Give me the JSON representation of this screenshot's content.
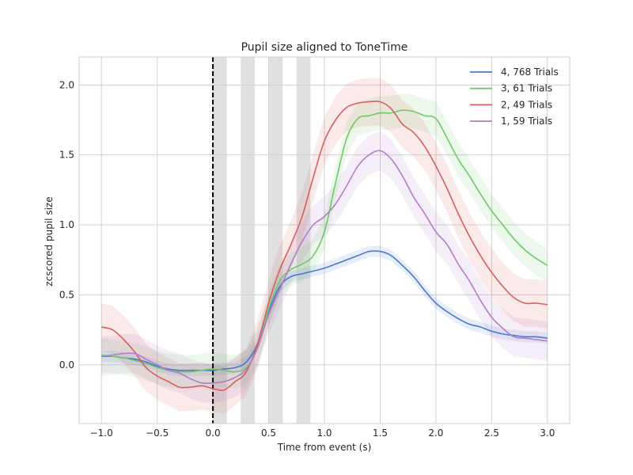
{
  "chart_data": {
    "type": "line",
    "title": "Pupil size aligned to ToneTime",
    "xlabel": "Time from event (s)",
    "ylabel": "zcscored pupil size",
    "xlim": [
      -1.2,
      3.2
    ],
    "ylim": [
      -0.42,
      2.2
    ],
    "xticks": [
      -1.0,
      -0.5,
      0.0,
      0.5,
      1.0,
      1.5,
      2.0,
      2.5,
      3.0
    ],
    "xtick_labels": [
      "−1.0",
      "−0.5",
      "0.0",
      "0.5",
      "1.0",
      "1.5",
      "2.0",
      "2.5",
      "3.0"
    ],
    "yticks": [
      0.0,
      0.5,
      1.0,
      1.5,
      2.0
    ],
    "ytick_labels": [
      "0.0",
      "0.5",
      "1.0",
      "1.5",
      "2.0"
    ],
    "grid": true,
    "legend_position": "top-right",
    "event_line_x": 0.0,
    "shaded_intervals": [
      [
        0.0,
        0.125
      ],
      [
        0.25,
        0.375
      ],
      [
        0.5,
        0.625
      ],
      [
        0.75,
        0.875
      ]
    ],
    "x": [
      -1.0,
      -0.9,
      -0.8,
      -0.7,
      -0.6,
      -0.5,
      -0.4,
      -0.3,
      -0.2,
      -0.1,
      0.0,
      0.1,
      0.2,
      0.3,
      0.4,
      0.5,
      0.6,
      0.7,
      0.8,
      0.9,
      1.0,
      1.1,
      1.2,
      1.3,
      1.4,
      1.5,
      1.6,
      1.7,
      1.8,
      1.9,
      2.0,
      2.1,
      2.2,
      2.3,
      2.4,
      2.5,
      2.6,
      2.7,
      2.8,
      2.9,
      3.0
    ],
    "series": [
      {
        "name": "4, 768 Trials",
        "color": "#4878d0",
        "values": [
          0.06,
          0.06,
          0.05,
          0.04,
          0.02,
          -0.01,
          -0.03,
          -0.04,
          -0.04,
          -0.04,
          -0.04,
          -0.03,
          -0.02,
          0.02,
          0.15,
          0.38,
          0.56,
          0.63,
          0.65,
          0.67,
          0.69,
          0.72,
          0.75,
          0.78,
          0.81,
          0.81,
          0.78,
          0.71,
          0.63,
          0.53,
          0.44,
          0.38,
          0.33,
          0.29,
          0.27,
          0.24,
          0.22,
          0.21,
          0.2,
          0.2,
          0.19
        ],
        "band": 0.04
      },
      {
        "name": "3, 61 Trials",
        "color": "#6acc64",
        "values": [
          0.07,
          0.06,
          0.05,
          0.03,
          0.01,
          -0.02,
          -0.04,
          -0.05,
          -0.05,
          -0.04,
          -0.03,
          -0.04,
          -0.05,
          -0.02,
          0.12,
          0.4,
          0.6,
          0.68,
          0.72,
          0.78,
          0.95,
          1.3,
          1.62,
          1.76,
          1.78,
          1.8,
          1.8,
          1.82,
          1.81,
          1.78,
          1.76,
          1.62,
          1.47,
          1.35,
          1.22,
          1.1,
          1.0,
          0.9,
          0.82,
          0.76,
          0.71
        ],
        "band": 0.12
      },
      {
        "name": "2, 49 Trials",
        "color": "#d65f5f",
        "values": [
          0.27,
          0.25,
          0.18,
          0.09,
          -0.02,
          -0.08,
          -0.12,
          -0.16,
          -0.16,
          -0.15,
          -0.17,
          -0.18,
          -0.12,
          -0.05,
          0.15,
          0.44,
          0.68,
          0.86,
          1.06,
          1.34,
          1.6,
          1.75,
          1.84,
          1.87,
          1.88,
          1.88,
          1.83,
          1.72,
          1.66,
          1.56,
          1.42,
          1.26,
          1.08,
          0.92,
          0.78,
          0.66,
          0.56,
          0.48,
          0.44,
          0.44,
          0.43
        ],
        "band": 0.17
      },
      {
        "name": "1, 59 Trials",
        "color": "#b47cc7",
        "values": [
          0.06,
          0.07,
          0.08,
          0.08,
          0.04,
          0.0,
          -0.04,
          -0.06,
          -0.1,
          -0.13,
          -0.13,
          -0.12,
          -0.09,
          -0.03,
          0.12,
          0.36,
          0.54,
          0.72,
          0.88,
          1.0,
          1.06,
          1.15,
          1.28,
          1.42,
          1.5,
          1.53,
          1.47,
          1.35,
          1.2,
          1.08,
          0.95,
          0.86,
          0.72,
          0.6,
          0.46,
          0.34,
          0.26,
          0.2,
          0.19,
          0.18,
          0.17
        ],
        "band": 0.14
      }
    ]
  }
}
